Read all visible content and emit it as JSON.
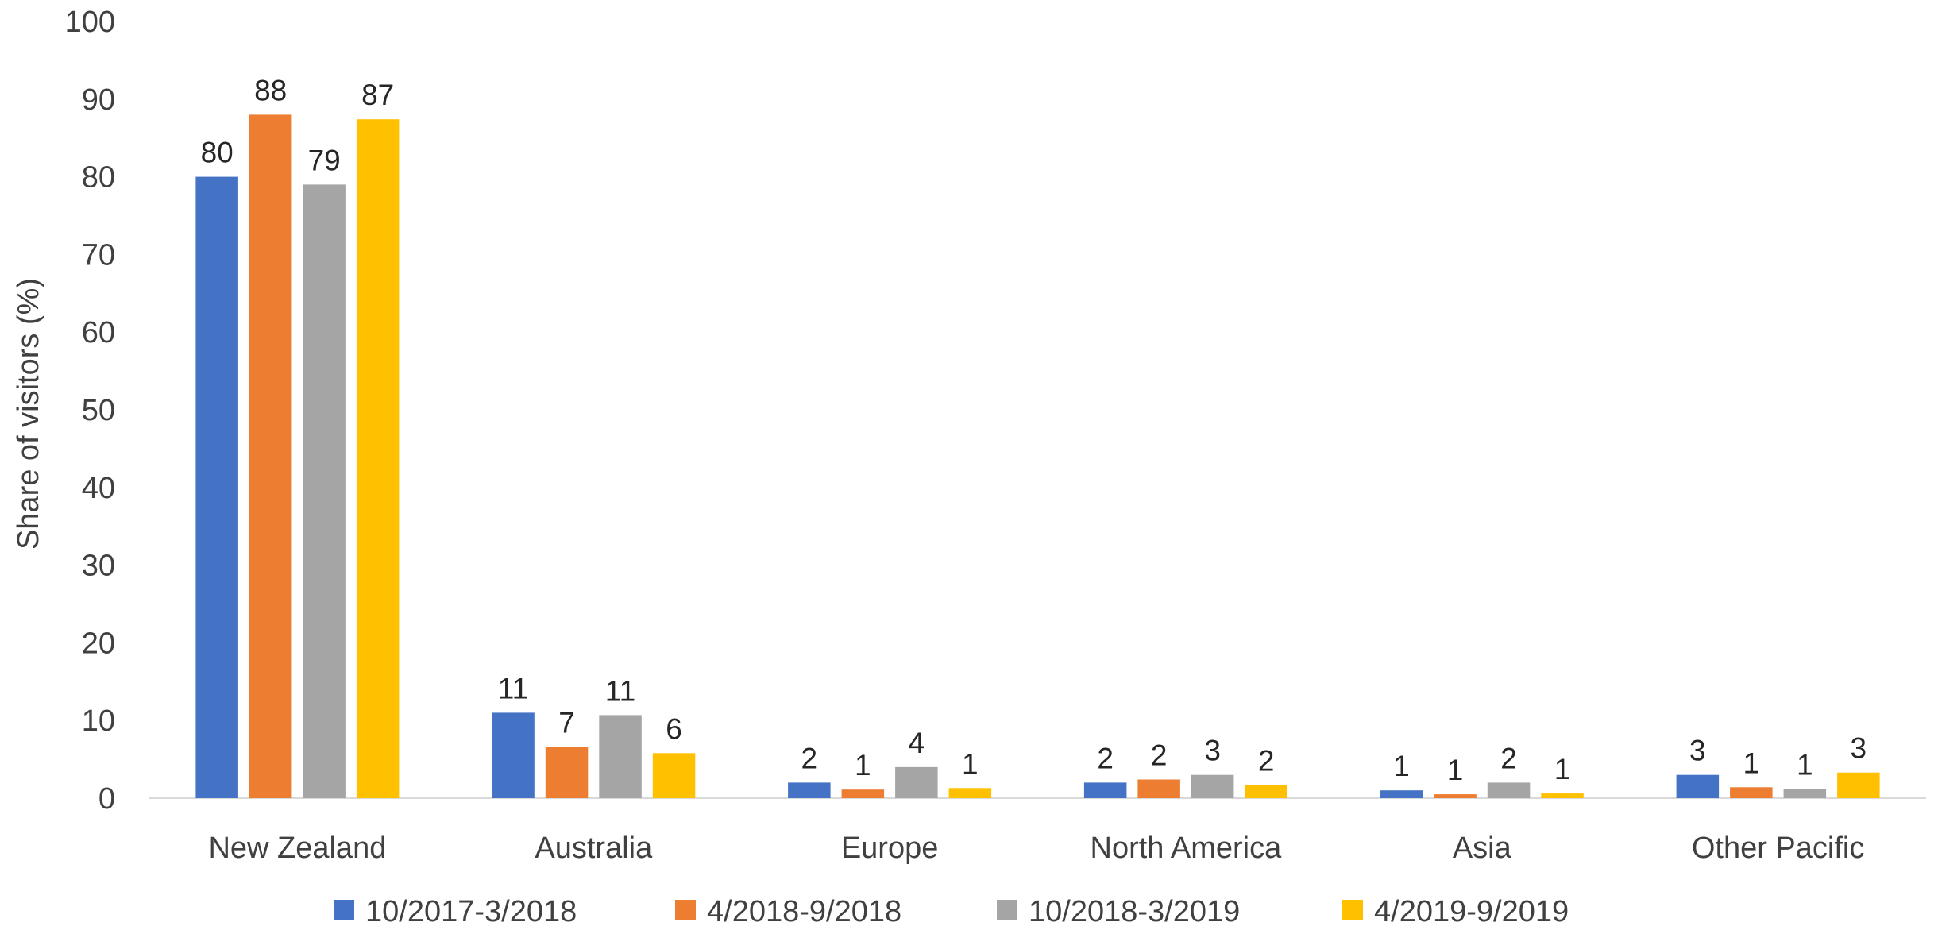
{
  "chart_data": {
    "type": "bar",
    "title": "",
    "xlabel": "",
    "ylabel": "Share of visitors (%)",
    "ylim": [
      0,
      100
    ],
    "yticks": [
      0,
      10,
      20,
      30,
      40,
      50,
      60,
      70,
      80,
      90,
      100
    ],
    "grid": false,
    "legend_position": "bottom",
    "categories": [
      "New Zealand",
      "Australia",
      "Europe",
      "North America",
      "Asia",
      "Other Pacific"
    ],
    "series": [
      {
        "name": "10/2017-3/2018",
        "color": "#4472C4",
        "values": [
          80,
          11,
          2,
          2,
          1,
          3
        ],
        "labels": [
          "80",
          "11",
          "2",
          "2",
          "1",
          "3"
        ]
      },
      {
        "name": "4/2018-9/2018",
        "color": "#ED7D31",
        "values": [
          88,
          6.6,
          1.1,
          2.4,
          0.5,
          1.4
        ],
        "labels": [
          "88",
          "7",
          "1",
          "2",
          "1",
          "1"
        ]
      },
      {
        "name": "10/2018-3/2019",
        "color": "#A5A5A5",
        "values": [
          79,
          10.7,
          4,
          3,
          2,
          1.2
        ],
        "labels": [
          "79",
          "11",
          "4",
          "3",
          "2",
          "1"
        ]
      },
      {
        "name": "4/2019-9/2019",
        "color": "#FFC000",
        "values": [
          87.4,
          5.8,
          1.3,
          1.7,
          0.6,
          3.3
        ],
        "labels": [
          "87",
          "6",
          "1",
          "2",
          "1",
          "3"
        ]
      }
    ]
  }
}
